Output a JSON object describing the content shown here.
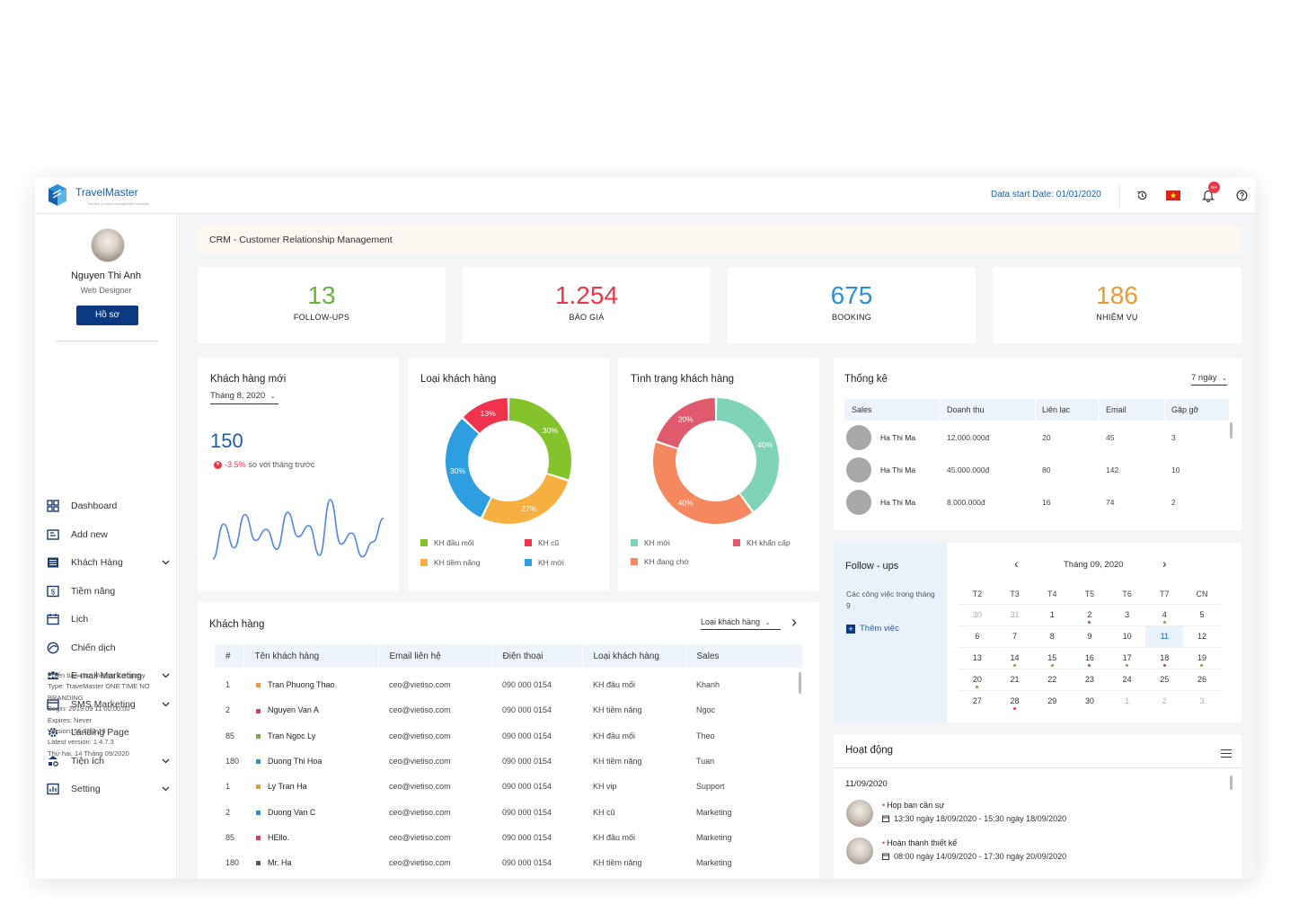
{
  "header": {
    "brand": "TravelMaster",
    "brand_tagline": "Tourism & travel management software",
    "data_start": "Data start Date: 01/01/2020",
    "notif_badge": "99+"
  },
  "user": {
    "name": "Nguyen Thi Anh",
    "role": "Web Designer",
    "profile_button": "Hồ sơ"
  },
  "nav": [
    {
      "label": "Dashboard",
      "icon": "dashboard-icon",
      "has_children": false
    },
    {
      "label": "Add new",
      "icon": "add-new-icon",
      "has_children": false
    },
    {
      "label": "Khách Hàng",
      "icon": "customers-icon",
      "has_children": true
    },
    {
      "label": "Tiềm năng",
      "icon": "potential-icon",
      "has_children": false
    },
    {
      "label": "Lịch",
      "icon": "calendar-icon",
      "has_children": false
    },
    {
      "label": "Chiến dịch",
      "icon": "campaign-icon",
      "has_children": false
    },
    {
      "label": "E-mail Marketing",
      "icon": "email-marketing-icon",
      "has_children": true
    },
    {
      "label": "SMS Marketing",
      "icon": "sms-marketing-icon",
      "has_children": true
    },
    {
      "label": "Landing Page",
      "icon": "landing-page-icon",
      "has_children": false
    },
    {
      "label": "Tiện ích",
      "icon": "utilities-icon",
      "has_children": true
    },
    {
      "label": "Setting",
      "icon": "setting-icon",
      "has_children": true
    }
  ],
  "version_info": [
    "Phiên bản cho: Vietiso Company",
    "Type: TraveMaster ONE TIME NO",
    "BRANDING",
    "Begin: 2019 09 11 00:00:00",
    "Expires: Never",
    "Version: 56.25.1.19",
    "Latest version: 1.4.7.3",
    "Thứ hai, 14 Tháng 09/2020"
  ],
  "crm_title": "CRM - Customer Relationship Management",
  "stats": [
    {
      "value": "13",
      "label": "FOLLOW-UPS",
      "color": "#6ab535"
    },
    {
      "value": "1.254",
      "label": "BÁO GIÁ",
      "color": "#e8394a"
    },
    {
      "value": "675",
      "label": "BOOKING",
      "color": "#2a8fd6"
    },
    {
      "value": "186",
      "label": "NHIỆM VỤ",
      "color": "#f0982c"
    }
  ],
  "new_customers": {
    "title": "Khách hàng mới",
    "month": "Tháng 8, 2020",
    "count": "150",
    "change": "-3.5%",
    "change_text": "so với tháng trước",
    "trend": [
      15,
      62,
      30,
      75,
      40,
      55,
      28,
      78,
      45,
      60,
      20,
      95,
      35,
      50,
      18,
      38,
      70
    ]
  },
  "customer_type": {
    "title": "Loại khách hàng",
    "slices": [
      {
        "name": "KH đầu mối",
        "value": 30,
        "color": "#84c32c",
        "label": "30%"
      },
      {
        "name": "KH tiềm năng",
        "value": 27,
        "color": "#f7b040",
        "label": "27%"
      },
      {
        "name": "KH mới",
        "value": 30,
        "color": "#2d9fe0",
        "label": "30%"
      },
      {
        "name": "KH cũ",
        "value": 13,
        "color": "#f0324b",
        "label": "13%"
      }
    ],
    "legend_order": [
      "KH đầu mối",
      "KH cũ",
      "KH tiềm năng",
      "KH mới"
    ]
  },
  "customer_status": {
    "title": "Tình trạng khách hàng",
    "slices": [
      {
        "name": "KH mới",
        "value": 40,
        "color": "#7fd3b9",
        "label": "40%"
      },
      {
        "name": "KH đang chờ",
        "value": 40,
        "color": "#f5885f",
        "label": "40%"
      },
      {
        "name": "KH khẩn cấp",
        "value": 20,
        "color": "#de5a6c",
        "label": "20%"
      }
    ],
    "legend_order": [
      "KH mới",
      "KH khẩn cấp",
      "KH đang chờ"
    ]
  },
  "statistics": {
    "title": "Thống kê",
    "period": "7 ngày",
    "columns": [
      "Sales",
      "Doanh thu",
      "Liên lạc",
      "Email",
      "Gặp gỡ"
    ],
    "rows": [
      [
        "Ha Thi Ma",
        "12.000.000đ",
        "20",
        "45",
        "3"
      ],
      [
        "Ha Thi Ma",
        "45.000.000đ",
        "80",
        "142",
        "10"
      ],
      [
        "Ha Thi Ma",
        "8.000.000đ",
        "16",
        "74",
        "2"
      ]
    ]
  },
  "followups": {
    "title": "Follow - ups",
    "subtitle": "Các công việc trong tháng 9",
    "add_label": "Thêm việc"
  },
  "calendar": {
    "month_label": "Tháng 09, 2020",
    "weekdays": [
      "T2",
      "T3",
      "T4",
      "T5",
      "T6",
      "T7",
      "CN"
    ],
    "weeks": [
      [
        "30",
        "31",
        "1",
        "2",
        "3",
        "4",
        "5"
      ],
      [
        "6",
        "7",
        "8",
        "9",
        "10",
        "11",
        "12"
      ],
      [
        "13",
        "14",
        "15",
        "16",
        "17",
        "18",
        "19"
      ],
      [
        "20",
        "21",
        "22",
        "23",
        "24",
        "25",
        "26"
      ],
      [
        "27",
        "28",
        "29",
        "30",
        "1",
        "2",
        "3"
      ]
    ],
    "today": "11",
    "dots": {
      "2": "#e8394a",
      "4": "#6ab535",
      "13": "",
      "14": "#6ab535",
      "15": "#6ab535",
      "16": "#e8394a",
      "17": "#6ab535",
      "18": "#e8394a",
      "19": "#6ab535",
      "20": "#6ab535",
      "28": "#e8394a"
    }
  },
  "customers": {
    "title": "Khách hàng",
    "filter": "Loại khách hàng",
    "columns": [
      "#",
      "Tên khách hàng",
      "Email liên hệ",
      "Điện thoại",
      "Loại khách hàng",
      "Sales"
    ],
    "rows": [
      {
        "id": "1",
        "name": "Tran Phuong Thao",
        "color": "#f0982c",
        "email": "ceo@vietiso.com",
        "phone": "090 000 0154",
        "type": "KH đầu mối",
        "sales": "Khanh"
      },
      {
        "id": "2",
        "name": "Nguyen Van A",
        "color": "#e8394a",
        "email": "ceo@vietiso.com",
        "phone": "090 000 0154",
        "type": "KH tiềm năng",
        "sales": "Ngọc"
      },
      {
        "id": "85",
        "name": "Tran Ngoc Ly",
        "color": "#6ab535",
        "email": "ceo@vietiso.com",
        "phone": "090 000 0154",
        "type": "KH đầu mối",
        "sales": "Theo"
      },
      {
        "id": "180",
        "name": "Duong Thi Hoa",
        "color": "#2a8fd6",
        "email": "ceo@vietiso.com",
        "phone": "090 000 0154",
        "type": "KH tiềm năng",
        "sales": "Tuan"
      },
      {
        "id": "1",
        "name": "Ly Tran Ha",
        "color": "#f0982c",
        "email": "ceo@vietiso.com",
        "phone": "090 000 0154",
        "type": "KH vip",
        "sales": "Support"
      },
      {
        "id": "2",
        "name": "Duong Van C",
        "color": "#2a8fd6",
        "email": "ceo@vietiso.com",
        "phone": "090 000 0154",
        "type": "KH cũ",
        "sales": "Marketing"
      },
      {
        "id": "85",
        "name": "HEllo.",
        "color": "#e8394a",
        "email": "ceo@vietiso.com",
        "phone": "090 000 0154",
        "type": "KH đầu mối",
        "sales": "Marketing"
      },
      {
        "id": "180",
        "name": "Mr. Ha",
        "color": "#555555",
        "email": "ceo@vietiso.com",
        "phone": "090 000 0154",
        "type": "KH tiềm năng",
        "sales": "Marketing"
      }
    ]
  },
  "activity": {
    "title": "Hoạt động",
    "date": "11/09/2020",
    "items": [
      {
        "title": "Họp ban cần sự",
        "time": "13:30 ngày 18/09/2020 - 15:30 ngày 18/09/2020"
      },
      {
        "title": "Hoàn thành thiết kế",
        "time": "08:00 ngày 14/09/2020 - 17:30 ngày 20/09/2020"
      }
    ]
  }
}
